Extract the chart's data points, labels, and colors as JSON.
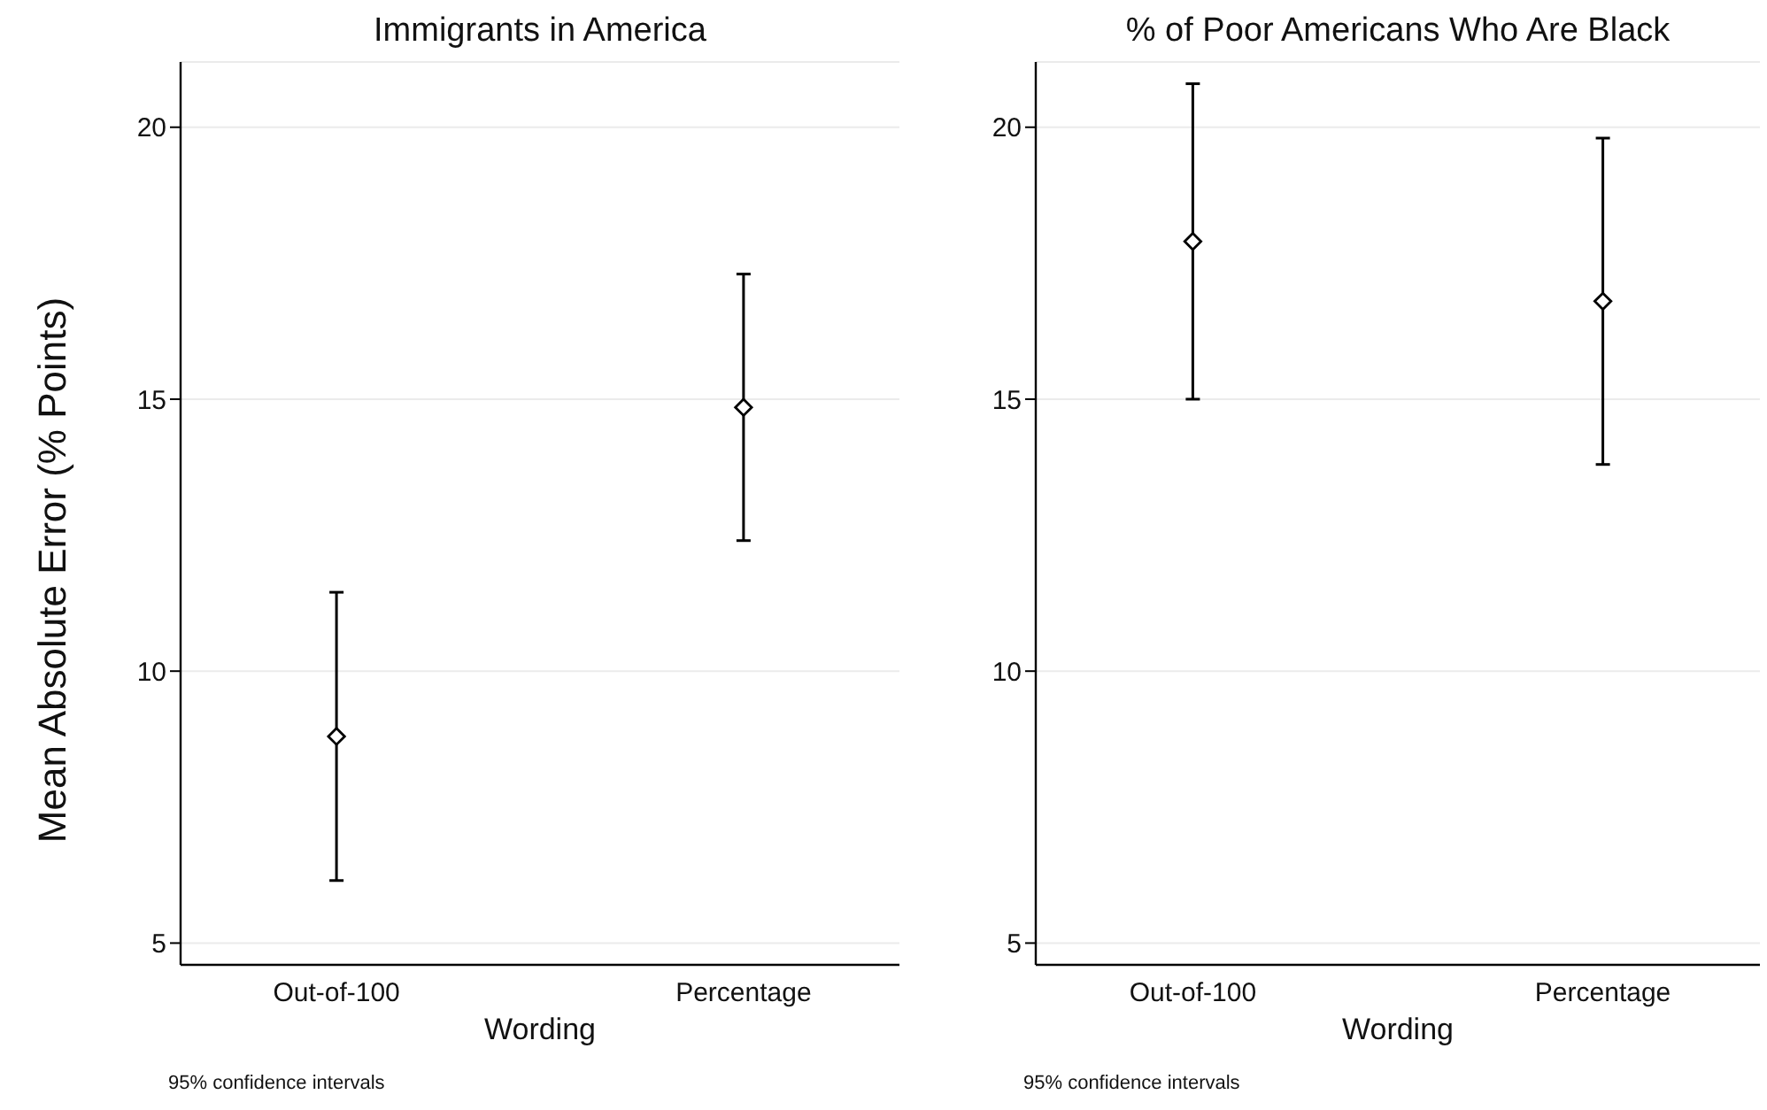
{
  "chart_data": [
    {
      "type": "scatter",
      "title": "Immigrants in America",
      "xlabel": "Wording",
      "ylabel": "Mean Absolute Error (% Points)",
      "categories": [
        "Out-of-100",
        "Percentage"
      ],
      "values": [
        8.8,
        14.85
      ],
      "errors": [
        2.65,
        2.45
      ],
      "color": "#000000",
      "marker": "diamond",
      "ylim": [
        4.6,
        21.2
      ],
      "yticks": [
        5,
        10,
        15,
        20
      ],
      "grid": "y",
      "annotations": [
        "95% confidence intervals"
      ]
    },
    {
      "type": "scatter",
      "title": "% of Poor Americans Who Are Black",
      "xlabel": "Wording",
      "categories": [
        "Out-of-100",
        "Percentage"
      ],
      "values": [
        17.9,
        16.8
      ],
      "errors": [
        2.9,
        3.0
      ],
      "color": "#000000",
      "marker": "diamond",
      "ylim": [
        4.6,
        21.2
      ],
      "yticks": [
        5,
        10,
        15,
        20
      ],
      "grid": "y",
      "annotations": [
        "95% confidence intervals"
      ]
    }
  ]
}
